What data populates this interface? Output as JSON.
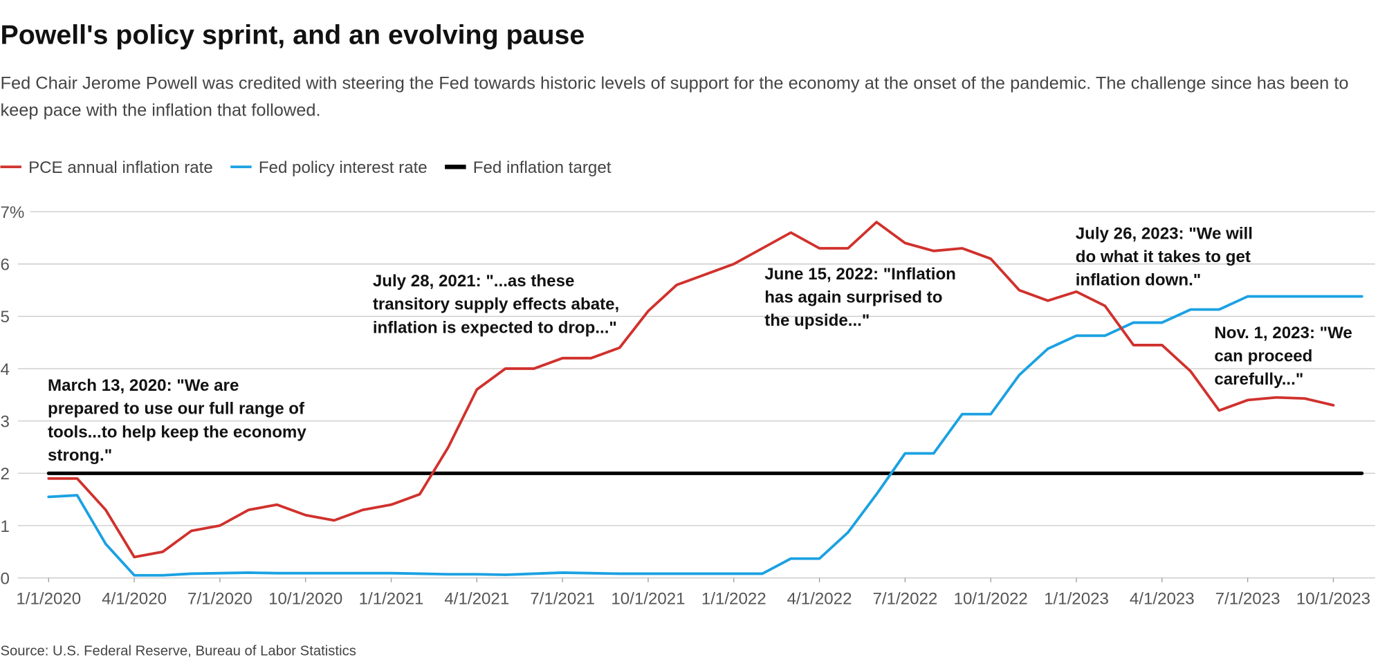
{
  "chart_data": {
    "type": "line",
    "title": "Powell's policy sprint, and an evolving pause",
    "subtitle": "Fed Chair Jerome Powell was credited with steering the Fed towards historic levels of support for the economy at the onset of the pandemic. The challenge since has been to keep pace with the inflation that followed.",
    "source": "Source: U.S. Federal Reserve, Bureau of Labor Statistics",
    "x": [
      "1/1/2020",
      "2/1/2020",
      "3/1/2020",
      "4/1/2020",
      "5/1/2020",
      "6/1/2020",
      "7/1/2020",
      "8/1/2020",
      "9/1/2020",
      "10/1/2020",
      "11/1/2020",
      "12/1/2020",
      "1/1/2021",
      "2/1/2021",
      "3/1/2021",
      "4/1/2021",
      "5/1/2021",
      "6/1/2021",
      "7/1/2021",
      "8/1/2021",
      "9/1/2021",
      "10/1/2021",
      "11/1/2021",
      "12/1/2021",
      "1/1/2022",
      "2/1/2022",
      "3/1/2022",
      "4/1/2022",
      "5/1/2022",
      "6/1/2022",
      "7/1/2022",
      "8/1/2022",
      "9/1/2022",
      "10/1/2022",
      "11/1/2022",
      "12/1/2022",
      "1/1/2023",
      "2/1/2023",
      "3/1/2023",
      "4/1/2023",
      "5/1/2023",
      "6/1/2023",
      "7/1/2023",
      "8/1/2023",
      "9/1/2023",
      "10/1/2023",
      "11/1/2023"
    ],
    "series": [
      {
        "name": "PCE annual inflation rate",
        "color": "#d0312d",
        "values": [
          1.9,
          1.9,
          1.3,
          0.4,
          0.5,
          0.9,
          1.0,
          1.3,
          1.4,
          1.2,
          1.1,
          1.3,
          1.4,
          1.6,
          2.5,
          3.6,
          4.0,
          4.0,
          4.2,
          4.2,
          4.4,
          5.1,
          5.6,
          5.8,
          6.0,
          6.3,
          6.6,
          6.3,
          6.3,
          6.8,
          6.4,
          6.25,
          6.3,
          6.1,
          5.5,
          5.3,
          5.47,
          5.2,
          4.45,
          4.45,
          3.95,
          3.2,
          3.4,
          3.45,
          3.43,
          3.3,
          null
        ]
      },
      {
        "name": "Fed policy interest rate",
        "color": "#1ba1e2",
        "values": [
          1.55,
          1.58,
          0.65,
          0.05,
          0.05,
          0.08,
          0.09,
          0.1,
          0.09,
          0.09,
          0.09,
          0.09,
          0.09,
          0.08,
          0.07,
          0.07,
          0.06,
          0.08,
          0.1,
          0.09,
          0.08,
          0.08,
          0.08,
          0.08,
          0.08,
          0.08,
          0.37,
          0.37,
          0.87,
          1.6,
          2.38,
          2.38,
          3.13,
          3.13,
          3.88,
          4.38,
          4.63,
          4.63,
          4.88,
          4.88,
          5.13,
          5.13,
          5.38,
          5.38,
          5.38,
          5.38,
          5.38
        ]
      },
      {
        "name": "Fed inflation target",
        "color": "#000000",
        "values": [
          2,
          2,
          2,
          2,
          2,
          2,
          2,
          2,
          2,
          2,
          2,
          2,
          2,
          2,
          2,
          2,
          2,
          2,
          2,
          2,
          2,
          2,
          2,
          2,
          2,
          2,
          2,
          2,
          2,
          2,
          2,
          2,
          2,
          2,
          2,
          2,
          2,
          2,
          2,
          2,
          2,
          2,
          2,
          2,
          2,
          2,
          2
        ]
      }
    ],
    "xticks": [
      "1/1/2020",
      "4/1/2020",
      "7/1/2020",
      "10/1/2020",
      "1/1/2021",
      "4/1/2021",
      "7/1/2021",
      "10/1/2021",
      "1/1/2022",
      "4/1/2022",
      "7/1/2022",
      "10/1/2022",
      "1/1/2023",
      "4/1/2023",
      "7/1/2023",
      "10/1/2023"
    ],
    "ylim": [
      0,
      7
    ],
    "yticks": [
      0,
      1,
      2,
      3,
      4,
      5,
      6,
      {
        "value": 7,
        "label": "7%"
      }
    ],
    "grid": true,
    "legend": "top",
    "annotations": [
      {
        "lines": [
          "March 13, 2020: \"We are",
          "prepared to use our full range of",
          "tools...to help keep the economy",
          "strong.\""
        ]
      },
      {
        "lines": [
          "July 28, 2021: \"...as these",
          "transitory supply effects abate,",
          "inflation is expected to drop...\""
        ]
      },
      {
        "lines": [
          "June 15, 2022: \"Inflation",
          "has again surprised to",
          "the upside...\""
        ]
      },
      {
        "lines": [
          "July 26, 2023: \"We will",
          "do what it takes to get",
          "inflation down.\""
        ]
      },
      {
        "lines": [
          "Nov. 1, 2023: \"We",
          "can proceed",
          "carefully...\""
        ]
      }
    ]
  }
}
